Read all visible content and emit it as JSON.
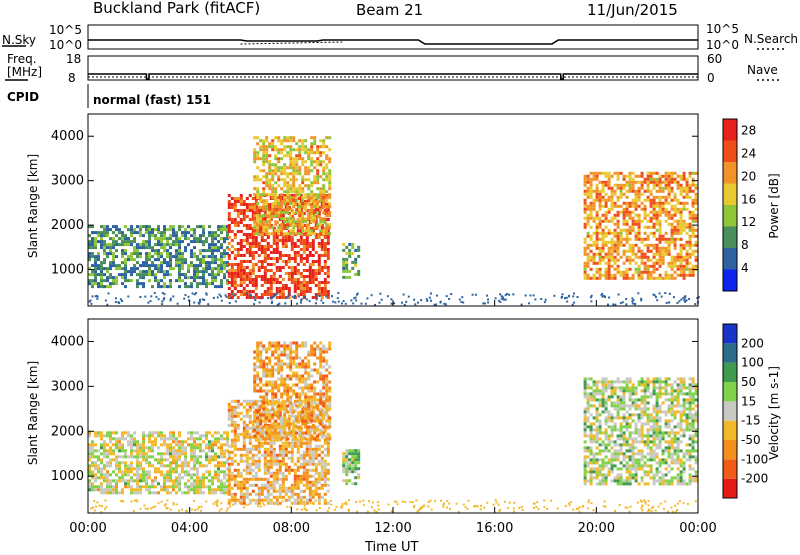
{
  "header": {
    "station": "Buckland Park (fitACF)",
    "beam": "Beam 21",
    "date": "11/Jun/2015"
  },
  "nsky_panel": {
    "left_label": "N.Sky",
    "right_label": "N.Search",
    "tick_top": "10^5",
    "tick_bottom": "10^0",
    "right_tick_top": "10^5",
    "right_tick_bottom": "10^0"
  },
  "freq_panel": {
    "left_label_1": "Freq.",
    "left_label_2": "[MHz]",
    "tick_top": "18",
    "tick_bottom": "8",
    "right_label": "Nave",
    "right_tick_top": "60",
    "right_tick_bottom": "0"
  },
  "cpid_panel": {
    "label": "CPID",
    "mode": "normal (fast) 151"
  },
  "colors": {
    "power_scale": [
      "#0b24f0",
      "#2c63a0",
      "#4a8f5a",
      "#8ec63a",
      "#e9c92e",
      "#f2932a",
      "#ef4e18",
      "#e8221b"
    ],
    "velocity_scale": [
      "#e51b16",
      "#f25a18",
      "#f3901c",
      "#f4b92a",
      "#c9c9c2",
      "#7fd24a",
      "#3d9a4f",
      "#2c6b8a",
      "#1a33c8"
    ]
  },
  "chart_data": [
    {
      "type": "heatmap",
      "title": "Power",
      "xlabel": "Time UT",
      "ylabel": "Slant Range [km]",
      "x_ticks": [
        "00:00",
        "04:00",
        "08:00",
        "12:00",
        "16:00",
        "20:00",
        "00:00"
      ],
      "y_ticks": [
        "1000",
        "2000",
        "3000",
        "4000"
      ],
      "ylim": [
        180,
        4500
      ],
      "colorbar": {
        "label": "Power [dB]",
        "ticks": [
          "4",
          "8",
          "12",
          "16",
          "20",
          "24",
          "28"
        ],
        "range": [
          0,
          30
        ]
      },
      "regions": [
        {
          "t_start": 0.0,
          "t_end": 5.5,
          "r_low": 600,
          "r_high": 2000,
          "value_db": 9
        },
        {
          "t_start": 5.5,
          "t_end": 9.5,
          "r_low": 400,
          "r_high": 2700,
          "value_db": 26
        },
        {
          "t_start": 6.5,
          "t_end": 9.5,
          "r_low": 1800,
          "r_high": 4000,
          "value_db": 18
        },
        {
          "t_start": 10.0,
          "t_end": 10.7,
          "r_low": 800,
          "r_high": 1600,
          "value_db": 12
        },
        {
          "t_start": 19.5,
          "t_end": 23.9,
          "r_low": 800,
          "r_high": 3200,
          "value_db": 20
        }
      ]
    },
    {
      "type": "heatmap",
      "title": "Velocity",
      "xlabel": "Time UT",
      "ylabel": "Slant Range [km]",
      "x_ticks": [
        "00:00",
        "04:00",
        "08:00",
        "12:00",
        "16:00",
        "20:00",
        "00:00"
      ],
      "y_ticks": [
        "1000",
        "2000",
        "3000",
        "4000"
      ],
      "ylim": [
        180,
        4500
      ],
      "colorbar": {
        "label": "Velocity [m s-1]",
        "ticks": [
          "200",
          "100",
          "50",
          "15",
          "-15",
          "-50",
          "-100",
          "-200"
        ],
        "range": [
          -250,
          250
        ]
      },
      "regions": [
        {
          "t_start": 0.0,
          "t_end": 5.5,
          "r_low": 600,
          "r_high": 2000,
          "value_ms": 0
        },
        {
          "t_start": 5.5,
          "t_end": 9.5,
          "r_low": 400,
          "r_high": 2700,
          "value_ms": -60
        },
        {
          "t_start": 6.5,
          "t_end": 9.5,
          "r_low": 1800,
          "r_high": 4000,
          "value_ms": -80
        },
        {
          "t_start": 10.0,
          "t_end": 10.7,
          "r_low": 800,
          "r_high": 1600,
          "value_ms": 40
        },
        {
          "t_start": 19.5,
          "t_end": 23.9,
          "r_low": 800,
          "r_high": 3200,
          "value_ms": 20
        }
      ]
    }
  ]
}
